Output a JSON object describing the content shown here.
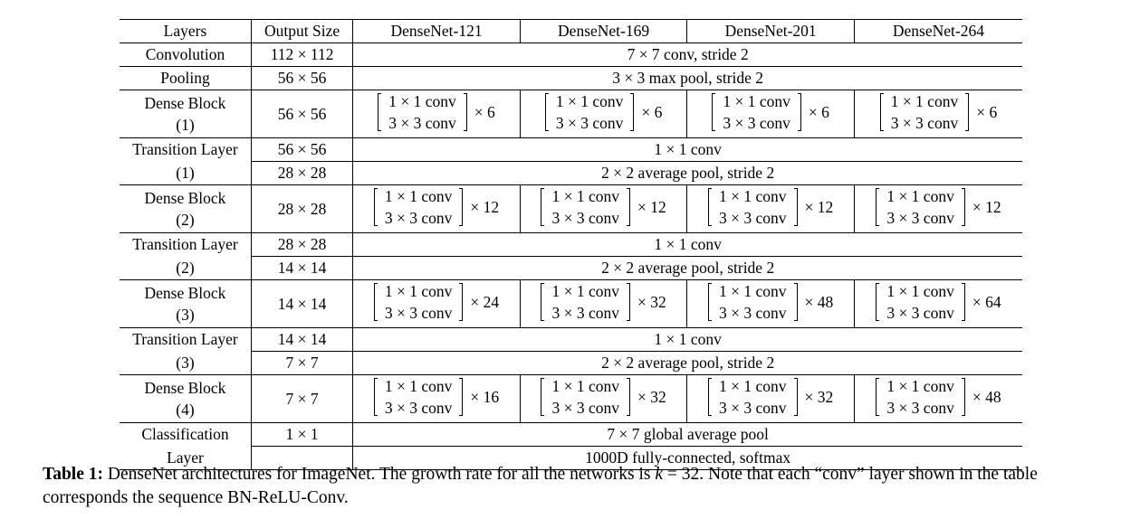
{
  "headers": [
    "Layers",
    "Output Size",
    "DenseNet-121",
    "DenseNet-169",
    "DenseNet-201",
    "DenseNet-264"
  ],
  "conv_label": "1 × 1 conv",
  "conv3_label": "3 × 3 conv",
  "rows": {
    "convolution": {
      "layer": "Convolution",
      "size": "112 × 112",
      "spec": "7 × 7 conv, stride 2"
    },
    "pooling": {
      "layer": "Pooling",
      "size": "56 × 56",
      "spec": "3 × 3 max pool, stride 2"
    },
    "dense1": {
      "layer_a": "Dense Block",
      "layer_b": "(1)",
      "size": "56 × 56",
      "mult": [
        "× 6",
        "× 6",
        "× 6",
        "× 6"
      ]
    },
    "trans1": {
      "layer_a": "Transition Layer",
      "layer_b": "(1)",
      "size_a": "56 × 56",
      "size_b": "28 × 28",
      "spec_a": "1 × 1 conv",
      "spec_b": "2 × 2 average pool, stride 2"
    },
    "dense2": {
      "layer_a": "Dense Block",
      "layer_b": "(2)",
      "size": "28 × 28",
      "mult": [
        "× 12",
        "× 12",
        "× 12",
        "× 12"
      ]
    },
    "trans2": {
      "layer_a": "Transition Layer",
      "layer_b": "(2)",
      "size_a": "28 × 28",
      "size_b": "14 × 14",
      "spec_a": "1 × 1 conv",
      "spec_b": "2 × 2 average pool, stride 2"
    },
    "dense3": {
      "layer_a": "Dense Block",
      "layer_b": "(3)",
      "size": "14 × 14",
      "mult": [
        "× 24",
        "× 32",
        "× 48",
        "× 64"
      ]
    },
    "trans3": {
      "layer_a": "Transition Layer",
      "layer_b": "(3)",
      "size_a": "14 × 14",
      "size_b": "7 × 7",
      "spec_a": "1 × 1 conv",
      "spec_b": "2 × 2 average pool, stride 2"
    },
    "dense4": {
      "layer_a": "Dense Block",
      "layer_b": "(4)",
      "size": "7 × 7",
      "mult": [
        "× 16",
        "× 32",
        "× 32",
        "× 48"
      ]
    },
    "classification": {
      "layer_a": "Classification",
      "layer_b": "Layer",
      "size_a": "1 × 1",
      "size_b": "",
      "spec_a": "7 × 7 global average pool",
      "spec_b": "1000D fully-connected, softmax"
    }
  },
  "caption": {
    "label": "Table 1:",
    "text_before_k": "DenseNet architectures for ImageNet. The growth rate for all the networks is",
    "k_symbol": "k",
    "text_after_k": "= 32. Note that each “conv” layer shown in the table corresponds the sequence BN-ReLU-Conv."
  }
}
